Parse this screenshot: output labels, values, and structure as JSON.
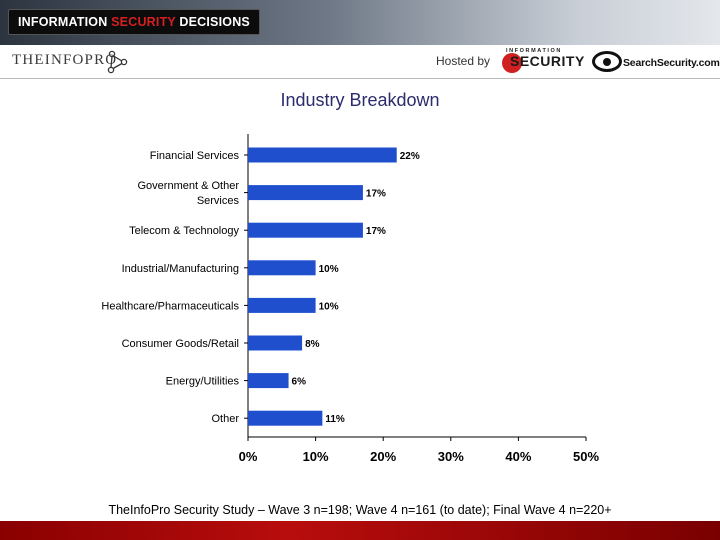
{
  "header": {
    "banner_text_a": "INFORMATION ",
    "banner_text_b": "SECURITY",
    "banner_text_c": " DECISIONS",
    "brand": "THEINFOPRO",
    "hosted_by": "Hosted by",
    "sec_logo_top": "INFORMATION",
    "sec_logo_word": "SECURITY",
    "ss_logo": "SearchSecurity.com"
  },
  "footer": {
    "source": "TheInfoPro Security Study – Wave 3 n=198; Wave 4 n=161 (to date); Final Wave 4 n=220+"
  },
  "colors": {
    "bar": "#1f4fcc",
    "title": "#2c2c6c",
    "footer_bar": "#a00000"
  },
  "chart_data": {
    "type": "bar",
    "orientation": "horizontal",
    "title": "Industry Breakdown",
    "categories": [
      [
        "Financial Services"
      ],
      [
        "Government & Other",
        "Services"
      ],
      [
        "Telecom & Technology"
      ],
      [
        "Industrial/Manufacturing"
      ],
      [
        "Healthcare/Pharmaceuticals"
      ],
      [
        "Consumer Goods/Retail"
      ],
      [
        "Energy/Utilities"
      ],
      [
        "Other"
      ]
    ],
    "values": [
      22,
      17,
      17,
      10,
      10,
      8,
      6,
      11
    ],
    "value_labels": [
      "22%",
      "17%",
      "17%",
      "10%",
      "10%",
      "8%",
      "6%",
      "11%"
    ],
    "xlim": [
      0,
      50
    ],
    "ticks": [
      0,
      10,
      20,
      30,
      40,
      50
    ],
    "tick_labels": [
      "0%",
      "10%",
      "20%",
      "30%",
      "40%",
      "50%"
    ],
    "grid": false
  }
}
